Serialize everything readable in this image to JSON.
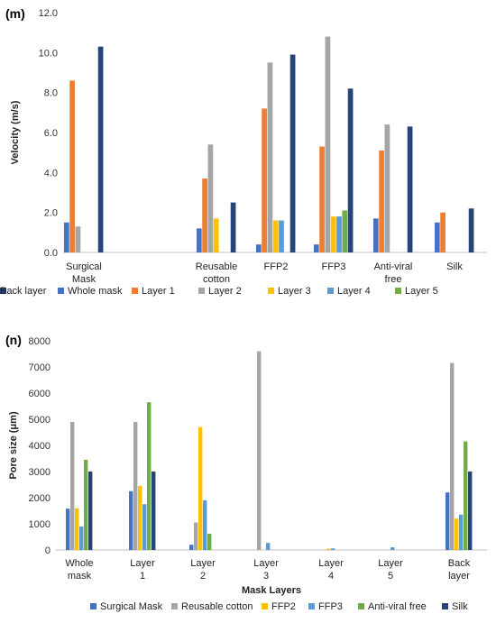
{
  "chart_data": [
    {
      "panel": "(m)",
      "type": "bar",
      "ylabel": "Velocity (m/s)",
      "xlabel": "",
      "ylim": [
        0,
        12
      ],
      "yticks": [
        "0.0",
        "2.0",
        "4.0",
        "6.0",
        "8.0",
        "10.0",
        "12.0"
      ],
      "categories": [
        [
          "Surgical",
          "Mask"
        ],
        [
          "Reusable",
          "cotton"
        ],
        [
          "FFP2"
        ],
        [
          "FFP3"
        ],
        [
          "Anti-viral",
          "free"
        ],
        [
          "Silk"
        ]
      ],
      "legend": "bottom",
      "series": [
        {
          "name": "Whole mask",
          "color": "#4472C4",
          "values": [
            1.5,
            1.2,
            0.4,
            0.4,
            1.7,
            1.5
          ]
        },
        {
          "name": "Layer 1",
          "color": "#ED7D31",
          "values": [
            8.6,
            3.7,
            7.2,
            5.3,
            5.1,
            2.0
          ]
        },
        {
          "name": "Layer 2",
          "color": "#A5A5A5",
          "values": [
            1.3,
            5.4,
            9.5,
            10.8,
            6.4,
            0
          ]
        },
        {
          "name": "Layer 3",
          "color": "#FFC000",
          "values": [
            0,
            1.7,
            1.6,
            1.8,
            0,
            0
          ]
        },
        {
          "name": "Layer 4",
          "color": "#5B9BD5",
          "values": [
            0,
            0,
            1.6,
            1.8,
            0,
            0
          ]
        },
        {
          "name": "Layer 5",
          "color": "#70AD47",
          "values": [
            0,
            0,
            0,
            2.1,
            0,
            0
          ]
        },
        {
          "name": "Back layer",
          "color": "#264478",
          "values": [
            10.3,
            2.5,
            9.9,
            8.2,
            6.3,
            2.2
          ]
        }
      ]
    },
    {
      "panel": "(n)",
      "type": "bar",
      "ylabel": "Pore size (μm)",
      "xlabel": "Mask Layers",
      "ylim": [
        0,
        8000
      ],
      "yticks": [
        "0",
        "1000",
        "2000",
        "3000",
        "4000",
        "5000",
        "6000",
        "7000",
        "8000"
      ],
      "categories": [
        [
          "Whole",
          "mask"
        ],
        [
          "Layer",
          "1"
        ],
        [
          "Layer",
          "2"
        ],
        [
          "Layer",
          "3"
        ],
        [
          "Layer",
          "4"
        ],
        [
          "Layer",
          "5"
        ],
        [
          "Back",
          "layer"
        ]
      ],
      "legend": "bottom",
      "series": [
        {
          "name": "Surgical Mask",
          "color": "#4472C4",
          "values": [
            1580,
            2250,
            200,
            0,
            0,
            0,
            2200
          ]
        },
        {
          "name": "Reusable cotton",
          "color": "#A5A5A5",
          "values": [
            4900,
            4900,
            1050,
            7600,
            0,
            0,
            7150
          ]
        },
        {
          "name": "FFP2",
          "color": "#FFC000",
          "values": [
            1600,
            2450,
            4700,
            0,
            50,
            0,
            1200
          ]
        },
        {
          "name": "FFP3",
          "color": "#5B9BD5",
          "values": [
            900,
            1750,
            1900,
            270,
            60,
            100,
            1350
          ]
        },
        {
          "name": "Anti-viral free",
          "color": "#70AD47",
          "values": [
            3450,
            5650,
            620,
            0,
            0,
            0,
            4150
          ]
        },
        {
          "name": "Silk",
          "color": "#264478",
          "values": [
            3000,
            3000,
            0,
            0,
            0,
            0,
            3000
          ]
        }
      ]
    }
  ]
}
